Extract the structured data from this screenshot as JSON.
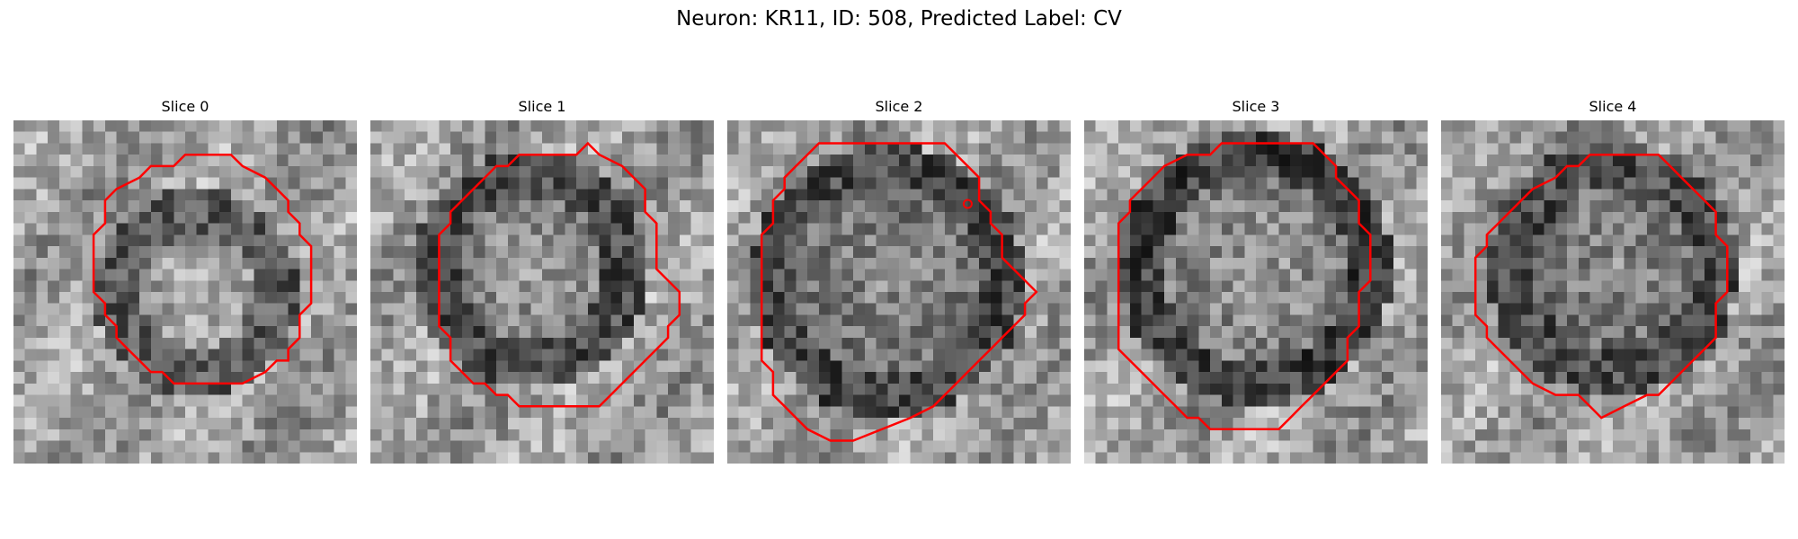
{
  "title": "Neuron: KR11, ID: 508, Predicted Label: CV",
  "panels": [
    {
      "title": "Slice 0"
    },
    {
      "title": "Slice 1"
    },
    {
      "title": "Slice 2"
    },
    {
      "title": "Slice 3"
    },
    {
      "title": "Slice 4"
    }
  ],
  "colors": {
    "contour": "#ff0000",
    "background": "#ffffff"
  }
}
